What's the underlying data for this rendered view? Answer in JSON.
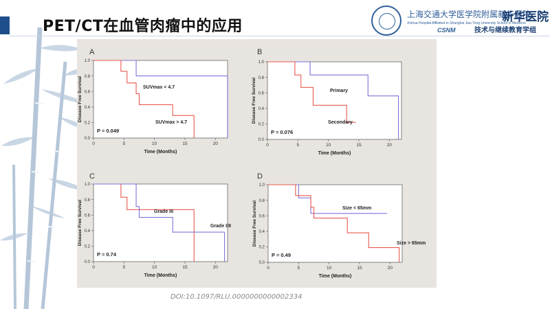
{
  "slide": {
    "title": "PET/CT在血管肉瘤中的应用",
    "doi": "DOI:10.1097/RLU.0000000000002334"
  },
  "logo": {
    "line1": "上海交通大学医学院附属新华医院",
    "line2": "Xinhua Hospital Affiliated to Shanghai Jiao Tong University School of Medicine",
    "csnm": "CSNM",
    "brand": "新华医院",
    "line3": "技术与继续教育学组"
  },
  "colors": {
    "red": "#e8594f",
    "blue": "#7b74d8",
    "panel_bg": "#ffffff",
    "figure_bg": "#e8e4df",
    "accent": "#1f4e8c"
  },
  "chart_data": [
    {
      "type": "line",
      "step": true,
      "panel": "A",
      "xlabel": "Time (Months)",
      "ylabel": "Disease Free Survival",
      "xlim": [
        0,
        22
      ],
      "ylim": [
        0,
        1
      ],
      "xticks": [
        0,
        5,
        10,
        15,
        20
      ],
      "yticks": [
        0.0,
        0.2,
        0.4,
        0.6,
        0.8,
        1.0
      ],
      "pvalue": "P = 0.049",
      "series": [
        {
          "name": "SUVmax < 4.7",
          "color": "blue",
          "x": [
            0,
            7,
            22,
            22
          ],
          "y": [
            1.0,
            0.8,
            0.8,
            0.0
          ]
        },
        {
          "name": "SUVmax > 4.7",
          "color": "red",
          "x": [
            0,
            4.5,
            5.5,
            7,
            7.5,
            13,
            16.5,
            16.5
          ],
          "y": [
            1.0,
            0.86,
            0.71,
            0.57,
            0.43,
            0.29,
            0.29,
            0.0
          ]
        }
      ]
    },
    {
      "type": "line",
      "step": true,
      "panel": "B",
      "xlabel": "Time (Months)",
      "ylabel": "Disease Free Survival",
      "xlim": [
        0,
        22
      ],
      "ylim": [
        0,
        1
      ],
      "xticks": [
        0,
        5,
        10,
        15,
        20
      ],
      "yticks": [
        0.0,
        0.2,
        0.4,
        0.6,
        0.8,
        1.0
      ],
      "pvalue": "P = 0.076",
      "series": [
        {
          "name": "Primary",
          "color": "blue",
          "x": [
            0,
            7,
            16.5,
            21.5,
            21.5
          ],
          "y": [
            1.0,
            0.83,
            0.56,
            0.56,
            0.0
          ]
        },
        {
          "name": "Secondary",
          "color": "red",
          "x": [
            0,
            4.5,
            5.5,
            7.5,
            13,
            14.5
          ],
          "y": [
            1.0,
            0.83,
            0.67,
            0.44,
            0.22,
            0.22
          ]
        }
      ]
    },
    {
      "type": "line",
      "step": true,
      "panel": "C",
      "xlabel": "Time (Months)",
      "ylabel": "Disease Free Survival",
      "xlim": [
        0,
        22
      ],
      "ylim": [
        0,
        1
      ],
      "xticks": [
        0,
        5,
        10,
        15,
        20
      ],
      "yticks": [
        0.0,
        0.2,
        0.4,
        0.6,
        0.8,
        1.0
      ],
      "pvalue": "P = 0.74",
      "series": [
        {
          "name": "Grade III",
          "color": "red",
          "x": [
            0,
            4.5,
            5.5,
            16.5,
            16.5
          ],
          "y": [
            1.0,
            0.83,
            0.67,
            0.67,
            0.0
          ]
        },
        {
          "name": "Grade I/II",
          "color": "blue",
          "x": [
            0,
            7,
            7.5,
            13,
            21.5,
            21.5
          ],
          "y": [
            1.0,
            0.71,
            0.57,
            0.38,
            0.38,
            0.0
          ]
        }
      ]
    },
    {
      "type": "line",
      "step": true,
      "panel": "D",
      "xlabel": "Time (Months)",
      "ylabel": "Disease Free Survival",
      "xlim": [
        0,
        22
      ],
      "ylim": [
        0,
        1
      ],
      "xticks": [
        0,
        5,
        10,
        15,
        20
      ],
      "yticks": [
        0.0,
        0.2,
        0.4,
        0.6,
        0.8,
        1.0
      ],
      "pvalue": "P = 0.49",
      "series": [
        {
          "name": "Size < 65mm",
          "color": "blue",
          "x": [
            0,
            5,
            7,
            19.5
          ],
          "y": [
            1.0,
            0.83,
            0.63,
            0.63
          ]
        },
        {
          "name": "Size > 65mm",
          "color": "red",
          "x": [
            0,
            4.5,
            7,
            7.5,
            13,
            16.5,
            21.5,
            21.5
          ],
          "y": [
            1.0,
            0.86,
            0.71,
            0.57,
            0.38,
            0.19,
            0.19,
            0.0
          ]
        }
      ]
    }
  ]
}
